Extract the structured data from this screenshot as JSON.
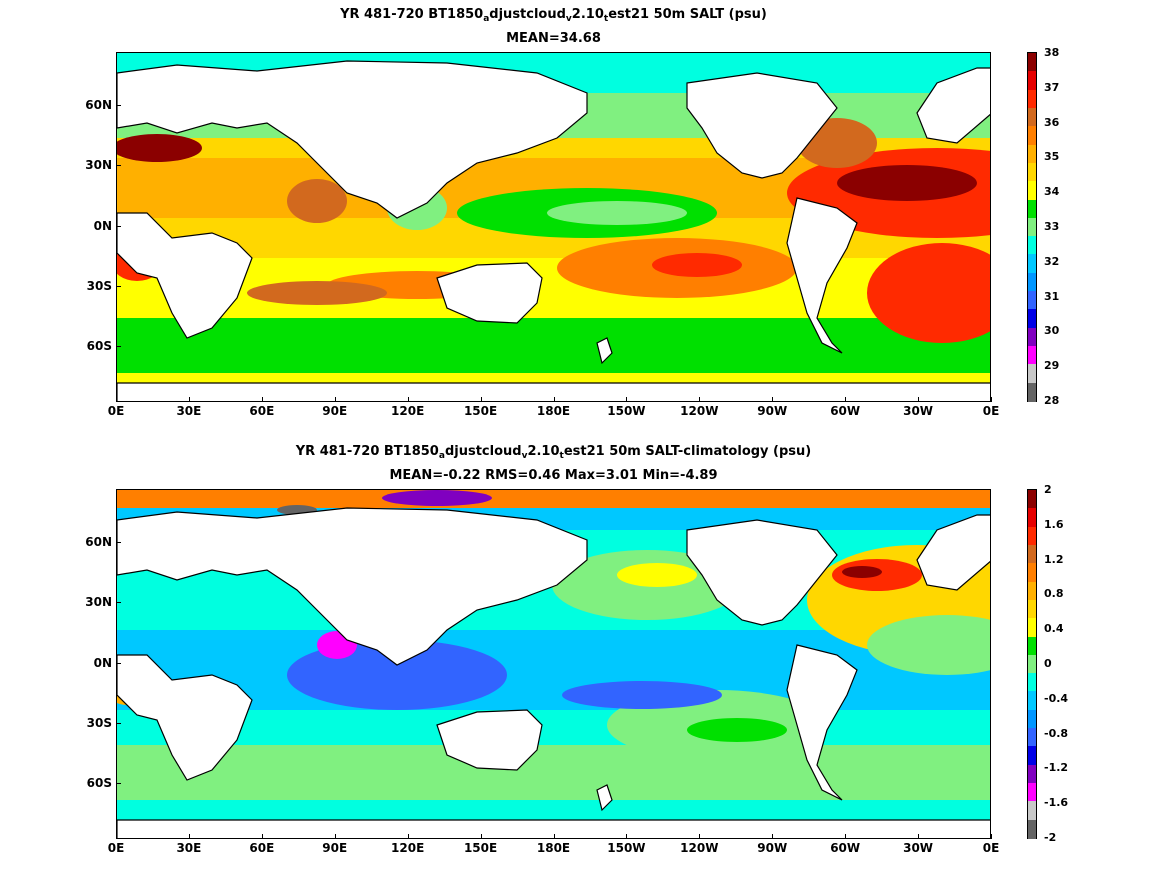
{
  "panels": [
    {
      "id": "salt",
      "title_parts": [
        "YR 481-720 BT1850",
        "a",
        "djustcloud",
        "v",
        "2.10",
        "t",
        "est21 50m SALT (psu)"
      ],
      "stats": "MEAN=34.68",
      "colorbar": {
        "labels": [
          "38",
          "37",
          "36",
          "35",
          "34",
          "33",
          "32",
          "31",
          "30",
          "29",
          "28"
        ],
        "colors": [
          "#8b0000",
          "#e60000",
          "#ff2a00",
          "#d2691e",
          "#ff7f00",
          "#ffb000",
          "#ffd700",
          "#ffff00",
          "#00e000",
          "#80f080",
          "#00ffe0",
          "#00c8ff",
          "#0096ff",
          "#3264ff",
          "#0000e6",
          "#8000c0",
          "#ff00ff",
          "#c8c8c8",
          "#646464"
        ]
      }
    },
    {
      "id": "anomaly",
      "title_parts": [
        "YR 481-720 BT1850",
        "a",
        "djustcloud",
        "v",
        "2.10",
        "t",
        "est21 50m SALT-climatology (psu)"
      ],
      "stats": "MEAN=-0.22   RMS=0.46   Max=3.01   Min=-4.89",
      "colorbar": {
        "labels": [
          "2",
          "1.6",
          "1.2",
          "0.8",
          "0.4",
          "0",
          "-0.4",
          "-0.8",
          "-1.2",
          "-1.6",
          "-2"
        ],
        "colors": [
          "#8b0000",
          "#e60000",
          "#ff2a00",
          "#d2691e",
          "#ff7f00",
          "#ffb000",
          "#ffd700",
          "#ffff00",
          "#00e000",
          "#80f080",
          "#00ffe0",
          "#00c8ff",
          "#0096ff",
          "#3264ff",
          "#0000e6",
          "#8000c0",
          "#ff00ff",
          "#c8c8c8",
          "#646464"
        ]
      }
    }
  ],
  "x_ticks": [
    "0E",
    "30E",
    "60E",
    "90E",
    "120E",
    "150E",
    "180E",
    "150W",
    "120W",
    "90W",
    "60W",
    "30W",
    "0E"
  ],
  "y_ticks": [
    "60N",
    "30N",
    "0N",
    "30S",
    "60S"
  ]
}
